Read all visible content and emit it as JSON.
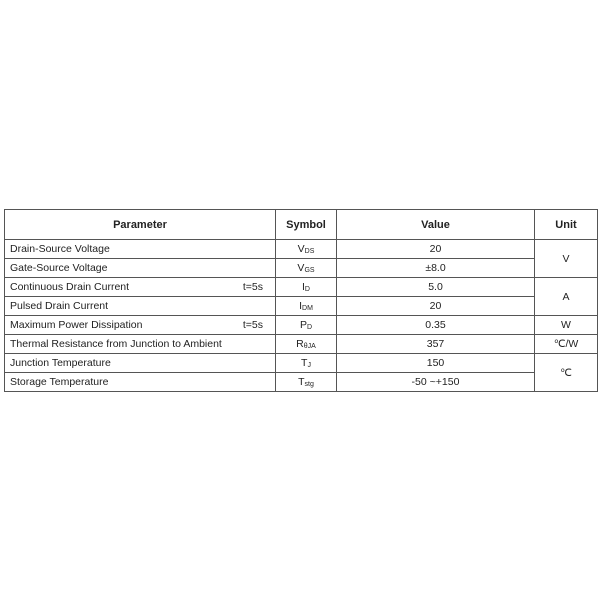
{
  "headers": {
    "parameter": "Parameter",
    "symbol": "Symbol",
    "value": "Value",
    "unit": "Unit"
  },
  "rows": [
    {
      "parameter": "Drain-Source Voltage",
      "condition": "",
      "symbol": "V",
      "symbol_sub": "DS",
      "value": "20"
    },
    {
      "parameter": "Gate-Source Voltage",
      "condition": "",
      "symbol": "V",
      "symbol_sub": "GS",
      "value": "±8.0"
    },
    {
      "parameter": "Continuous Drain Current",
      "condition": "t=5s",
      "symbol": "I",
      "symbol_sub": "D",
      "value": "5.0"
    },
    {
      "parameter": "Pulsed Drain Current",
      "condition": "",
      "symbol": "I",
      "symbol_sub": "DM",
      "value": "20"
    },
    {
      "parameter": "Maximum Power Dissipation",
      "condition": "t=5s",
      "symbol": "P",
      "symbol_sub": "D",
      "value": "0.35"
    },
    {
      "parameter": "Thermal Resistance from Junction to Ambient",
      "condition": "",
      "symbol": "R",
      "symbol_sub": "θJA",
      "value": "357"
    },
    {
      "parameter": "Junction Temperature",
      "condition": "",
      "symbol": "T",
      "symbol_sub": "J",
      "value": "150"
    },
    {
      "parameter": "Storage Temperature",
      "condition": "",
      "symbol": "T",
      "symbol_sub": "stg",
      "value": "-50 ~+150"
    }
  ],
  "units": [
    "V",
    "A",
    "W",
    "℃/W",
    "℃"
  ]
}
